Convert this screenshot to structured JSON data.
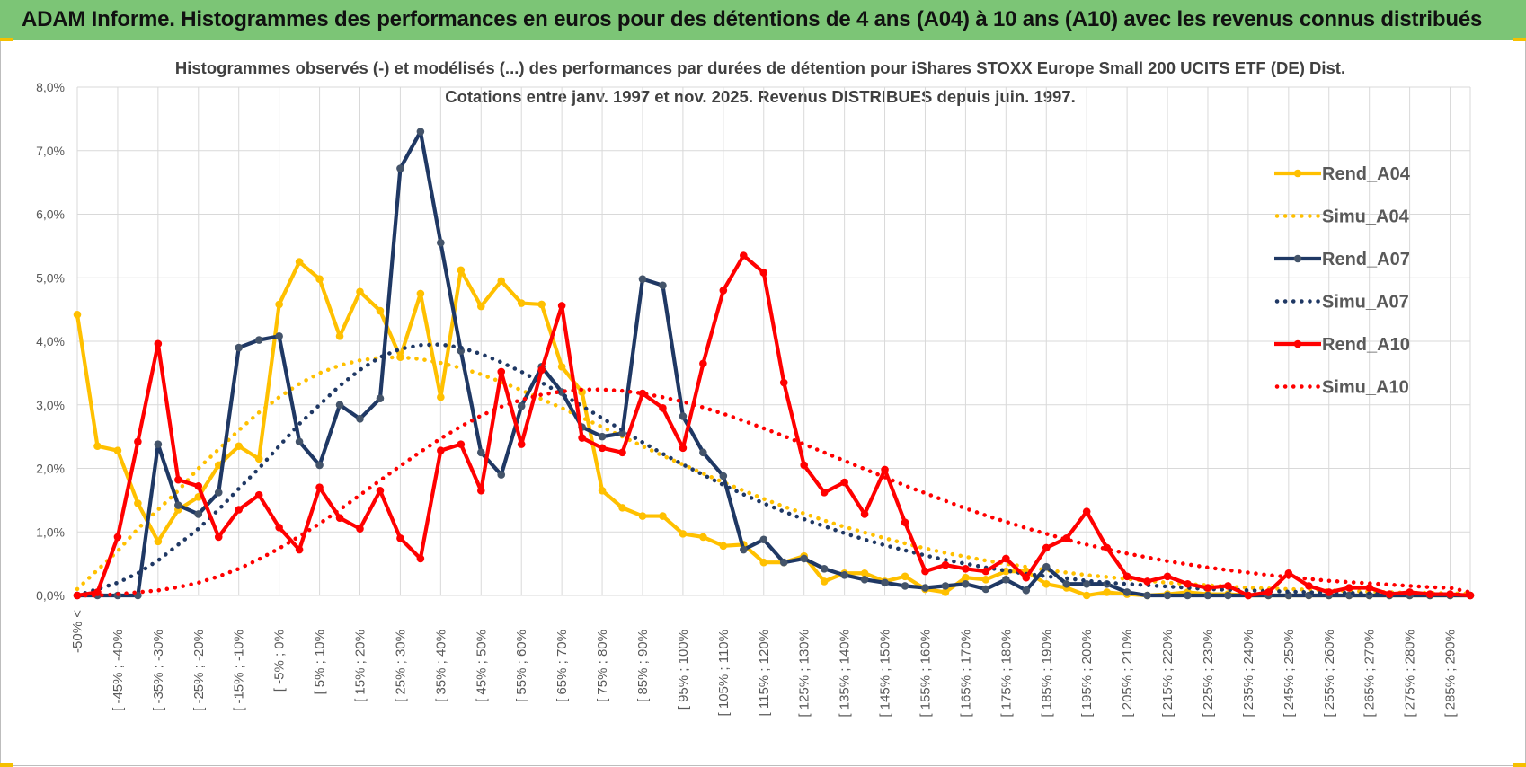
{
  "banner": {
    "title": "ADAM Informe. Histogrammes des performances en euros pour des détentions de 4 ans (A04) à 10 ans (A10) avec les revenus connus distribués"
  },
  "colors": {
    "banner": "#7cc576",
    "A04": "#ffc000",
    "A07": "#1f3864",
    "A10": "#ff0000",
    "grid": "#d9d9d9",
    "corner": "#f5c000"
  },
  "chart_data": {
    "type": "line",
    "title": "Histogrammes observés (-) et modélisés (...) des performances par durées de détention pour iShares STOXX Europe Small 200 UCITS ETF (DE) Dist.",
    "subtitle": "Cotations entre janv. 1997 et nov. 2025. Revenus DISTRIBUES depuis juin. 1997.",
    "xlabel": "",
    "ylabel": "",
    "ylim": [
      0,
      8
    ],
    "grid": true,
    "legend_position": "right",
    "y_ticks": [
      "0,0%",
      "1,0%",
      "2,0%",
      "3,0%",
      "4,0%",
      "5,0%",
      "6,0%",
      "7,0%",
      "8,0%"
    ],
    "x_tick_labels": [
      "-50% <",
      "[ -45% ; -40%",
      "[ -35% ; -30%",
      "[ -25% ; -20%",
      "[ -15% ; -10%",
      "[ -5% ; 0%",
      "[ 5% ; 10%",
      "[ 15% ; 20%",
      "[ 25% ; 30%",
      "[ 35% ; 40%",
      "[ 45% ; 50%",
      "[ 55% ; 60%",
      "[ 65% ; 70%",
      "[ 75% ; 80%",
      "[ 85% ; 90%",
      "[ 95% ; 100%",
      "[ 105% ; 110%",
      "[ 115% ; 120%",
      "[ 125% ; 130%",
      "[ 135% ; 140%",
      "[ 145% ; 150%",
      "[ 155% ; 160%",
      "[ 165% ; 170%",
      "[ 175% ; 180%",
      "[ 185% ; 190%",
      "[ 195% ; 200%",
      "[ 205% ; 210%",
      "[ 215% ; 220%",
      "[ 225% ; 230%",
      "[ 235% ; 240%",
      "[ 245% ; 250%",
      "[ 255% ; 260%",
      "[ 265% ; 270%",
      "[ 275% ; 280%",
      "[ 285% ; 290%"
    ],
    "x_count": 70,
    "series": [
      {
        "name": "Rend_A04",
        "style": "solid",
        "color": "#ffc000",
        "values": [
          4.42,
          2.35,
          2.28,
          1.45,
          0.85,
          1.35,
          1.55,
          2.05,
          2.35,
          2.15,
          4.58,
          5.25,
          4.98,
          4.08,
          4.78,
          4.48,
          3.75,
          4.75,
          3.12,
          5.12,
          4.55,
          4.95,
          4.6,
          4.58,
          3.6,
          3.2,
          1.65,
          1.38,
          1.25,
          1.25,
          0.97,
          0.92,
          0.78,
          0.8,
          0.52,
          0.52,
          0.62,
          0.22,
          0.35,
          0.35,
          0.22,
          0.3,
          0.1,
          0.05,
          0.28,
          0.25,
          0.38,
          0.38,
          0.18,
          0.12,
          0.0,
          0.05,
          0.02,
          0.0,
          0.02,
          0.05,
          0.02,
          0.02,
          0.0,
          0.0,
          0.0,
          0.0,
          0.0,
          0.0,
          0.0,
          0.0,
          0.0,
          0.0,
          0.0,
          0.0
        ]
      },
      {
        "name": "Simu_A04",
        "style": "dotted",
        "color": "#ffc000",
        "values": [
          0.1,
          0.4,
          0.7,
          1.05,
          1.35,
          1.65,
          2.0,
          2.3,
          2.6,
          2.88,
          3.12,
          3.33,
          3.5,
          3.62,
          3.7,
          3.74,
          3.75,
          3.72,
          3.66,
          3.58,
          3.48,
          3.36,
          3.23,
          3.09,
          2.95,
          2.8,
          2.65,
          2.5,
          2.35,
          2.2,
          2.06,
          1.92,
          1.78,
          1.65,
          1.52,
          1.4,
          1.29,
          1.18,
          1.08,
          0.99,
          0.9,
          0.82,
          0.74,
          0.67,
          0.61,
          0.55,
          0.5,
          0.45,
          0.4,
          0.36,
          0.32,
          0.29,
          0.26,
          0.23,
          0.2,
          0.18,
          0.16,
          0.14,
          0.12,
          0.11,
          0.1,
          0.09,
          0.08,
          0.07,
          0.06,
          0.05,
          0.04,
          0.04,
          0.03,
          0.03
        ]
      },
      {
        "name": "Rend_A07",
        "style": "solid",
        "color": "#1f3864",
        "values": [
          0.0,
          0.0,
          0.0,
          0.0,
          2.38,
          1.42,
          1.28,
          1.62,
          3.9,
          4.02,
          4.08,
          2.42,
          2.05,
          3.0,
          2.78,
          3.1,
          6.72,
          7.3,
          5.55,
          3.85,
          2.25,
          1.9,
          2.98,
          3.6,
          3.2,
          2.65,
          2.5,
          2.55,
          4.98,
          4.88,
          2.82,
          2.25,
          1.88,
          0.72,
          0.88,
          0.52,
          0.58,
          0.42,
          0.32,
          0.25,
          0.2,
          0.15,
          0.12,
          0.15,
          0.18,
          0.1,
          0.25,
          0.08,
          0.45,
          0.18,
          0.18,
          0.18,
          0.05,
          0.0,
          0.0,
          0.0,
          0.0,
          0.0,
          0.0,
          0.0,
          0.0,
          0.0,
          0.0,
          0.0,
          0.0,
          0.0,
          0.0,
          0.0,
          0.0,
          0.0
        ]
      },
      {
        "name": "Simu_A07",
        "style": "dotted",
        "color": "#1f3864",
        "values": [
          0.0,
          0.1,
          0.2,
          0.35,
          0.55,
          0.8,
          1.05,
          1.35,
          1.68,
          2.0,
          2.35,
          2.7,
          3.0,
          3.3,
          3.55,
          3.75,
          3.88,
          3.94,
          3.95,
          3.9,
          3.8,
          3.67,
          3.52,
          3.35,
          3.17,
          2.98,
          2.79,
          2.6,
          2.41,
          2.23,
          2.06,
          1.9,
          1.74,
          1.59,
          1.45,
          1.32,
          1.2,
          1.09,
          0.98,
          0.88,
          0.79,
          0.71,
          0.63,
          0.56,
          0.5,
          0.44,
          0.39,
          0.34,
          0.3,
          0.27,
          0.23,
          0.2,
          0.18,
          0.16,
          0.14,
          0.12,
          0.1,
          0.09,
          0.08,
          0.07,
          0.06,
          0.05,
          0.04,
          0.04,
          0.03,
          0.03,
          0.02,
          0.02,
          0.02,
          0.01
        ]
      },
      {
        "name": "Rend_A10",
        "style": "solid",
        "color": "#ff0000",
        "values": [
          0.0,
          0.05,
          0.92,
          2.42,
          3.96,
          1.82,
          1.72,
          0.92,
          1.35,
          1.58,
          1.07,
          0.72,
          1.7,
          1.22,
          1.05,
          1.65,
          0.9,
          0.58,
          2.28,
          2.38,
          1.65,
          3.52,
          2.38,
          3.55,
          4.56,
          2.48,
          2.32,
          2.25,
          3.18,
          2.95,
          2.32,
          3.65,
          4.8,
          5.35,
          5.08,
          3.35,
          2.05,
          1.62,
          1.78,
          1.28,
          1.98,
          1.15,
          0.38,
          0.48,
          0.42,
          0.38,
          0.58,
          0.28,
          0.75,
          0.9,
          1.32,
          0.75,
          0.3,
          0.22,
          0.3,
          0.18,
          0.12,
          0.15,
          0.0,
          0.05,
          0.35,
          0.15,
          0.05,
          0.12,
          0.12,
          0.02,
          0.05,
          0.02,
          0.02,
          0.0
        ]
      },
      {
        "name": "Simu_A10",
        "style": "dotted",
        "color": "#ff0000",
        "values": [
          0.0,
          0.0,
          0.02,
          0.05,
          0.08,
          0.13,
          0.2,
          0.3,
          0.42,
          0.57,
          0.74,
          0.93,
          1.13,
          1.35,
          1.58,
          1.81,
          2.04,
          2.26,
          2.47,
          2.66,
          2.83,
          2.97,
          3.08,
          3.16,
          3.21,
          3.24,
          3.24,
          3.22,
          3.18,
          3.12,
          3.05,
          2.96,
          2.86,
          2.75,
          2.63,
          2.51,
          2.38,
          2.25,
          2.12,
          1.99,
          1.86,
          1.73,
          1.61,
          1.49,
          1.37,
          1.26,
          1.16,
          1.06,
          0.97,
          0.88,
          0.8,
          0.73,
          0.66,
          0.6,
          0.54,
          0.49,
          0.44,
          0.4,
          0.36,
          0.32,
          0.29,
          0.26,
          0.23,
          0.21,
          0.19,
          0.17,
          0.15,
          0.13,
          0.12,
          0.05
        ]
      }
    ]
  }
}
